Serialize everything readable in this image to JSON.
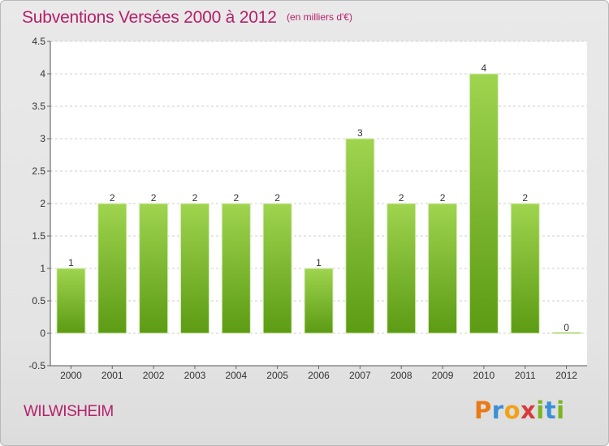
{
  "header": {
    "title": "Subventions Versées 2000 à 2012",
    "subtitle": "(en milliers d'€)"
  },
  "footer": {
    "place": "WILWISHEIM",
    "logo_letters": [
      "P",
      "r",
      "o",
      "x",
      "i",
      "t",
      "i"
    ],
    "logo_colors": [
      "#e87a18",
      "#3a8fd6",
      "#f0a21a",
      "#d93a3a",
      "#7ab520",
      "#3a8fd6",
      "#7ab520"
    ]
  },
  "chart_data": {
    "type": "bar",
    "title": "Subventions Versées 2000 à 2012",
    "subtitle": "(en milliers d'€)",
    "categories": [
      "2000",
      "2001",
      "2002",
      "2003",
      "2004",
      "2005",
      "2006",
      "2007",
      "2008",
      "2009",
      "2010",
      "2011",
      "2012"
    ],
    "values": [
      1,
      2,
      2,
      2,
      2,
      2,
      1,
      3,
      2,
      2,
      4,
      2,
      0
    ],
    "value_labels": [
      "1",
      "2",
      "2",
      "2",
      "2",
      "2",
      "1",
      "3",
      "2",
      "2",
      "4",
      "2",
      "0"
    ],
    "ylim": [
      -0.5,
      4.5
    ],
    "yticks": [
      -0.5,
      0,
      0.5,
      1,
      1.5,
      2,
      2.5,
      3,
      3.5,
      4,
      4.5
    ],
    "ytick_labels": [
      "-0.5",
      "0",
      "0.5",
      "1",
      "1.5",
      "2",
      "2.5",
      "3",
      "3.5",
      "4",
      "4.5"
    ],
    "xlabel": "",
    "ylabel": "",
    "grid": "horizontal dashed",
    "bar_color": "#8cc63f",
    "legend": "none"
  }
}
